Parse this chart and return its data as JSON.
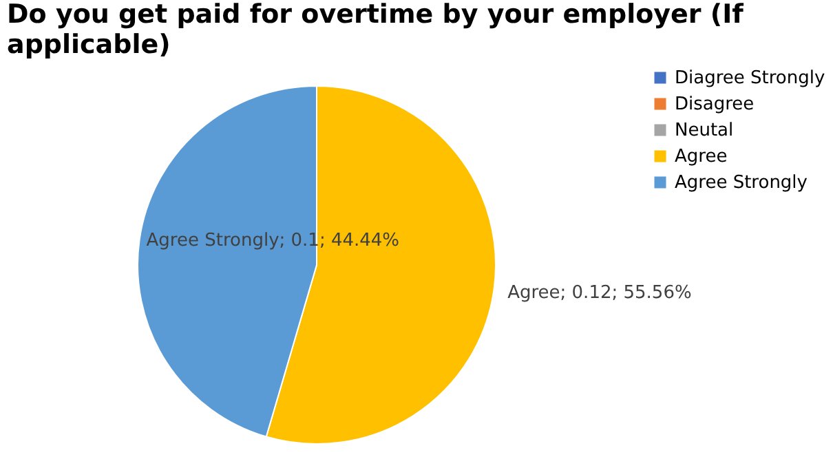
{
  "chart_data": {
    "type": "pie",
    "title": "Do you get paid for overtime by your employer (If applicable)",
    "categories": [
      "Diagree Strongly",
      "Disagree",
      "Neutal",
      "Agree",
      "Agree Strongly"
    ],
    "values": [
      0,
      0,
      0,
      0.12,
      0.1
    ],
    "colors": [
      "#4472c4",
      "#ed7d31",
      "#a5a5a5",
      "#ffc000",
      "#5b9bd5"
    ],
    "value_labels": [
      null,
      null,
      null,
      "Agree; 0.12; 55.56%",
      "Agree Strongly; 0.1; 44.44%"
    ],
    "legend": "right"
  }
}
